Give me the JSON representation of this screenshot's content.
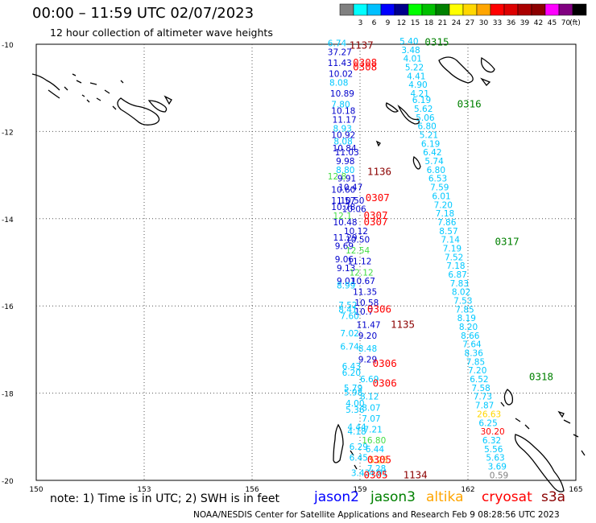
{
  "title": "00:00 – 11:59 UTC 02/07/2023",
  "subtitle": "12 hour collection of altimeter wave heights",
  "note": "note: 1) Time is in UTC; 2) SWH is in feet",
  "credit": "NOAA/NESDIS Center for Satellite Applications and Research   Feb  9 08:28:56 UTC 2023",
  "legend": {
    "unit": "(ft)",
    "bins": [
      {
        "label": "",
        "color": "#808080"
      },
      {
        "label": "3",
        "color": "#00ffff"
      },
      {
        "label": "6",
        "color": "#00c0ff"
      },
      {
        "label": "9",
        "color": "#0000ff"
      },
      {
        "label": "12",
        "color": "#00008b"
      },
      {
        "label": "15",
        "color": "#00ff00"
      },
      {
        "label": "18",
        "color": "#00c000"
      },
      {
        "label": "21",
        "color": "#008000"
      },
      {
        "label": "24",
        "color": "#ffff00"
      },
      {
        "label": "27",
        "color": "#ffd700"
      },
      {
        "label": "30",
        "color": "#ffa500"
      },
      {
        "label": "33",
        "color": "#ff0000"
      },
      {
        "label": "36",
        "color": "#dd0000"
      },
      {
        "label": "39",
        "color": "#aa0000"
      },
      {
        "label": "42",
        "color": "#8b0000"
      },
      {
        "label": "45",
        "color": "#ff00ff"
      },
      {
        "label": "70",
        "color": "#800080"
      },
      {
        "label": "",
        "color": "#000000"
      }
    ]
  },
  "missions": [
    {
      "name": "jason2",
      "color": "#0000ff"
    },
    {
      "name": "jason3",
      "color": "#008000"
    },
    {
      "name": "altika",
      "color": "#ffa500"
    },
    {
      "name": "cryosat",
      "color": "#ff0000"
    },
    {
      "name": "s3a",
      "color": "#8b0000"
    }
  ],
  "axes": {
    "lon_ticks": [
      "150",
      "153",
      "156",
      "159",
      "162",
      "165"
    ],
    "lat_ticks": [
      "-10",
      "-12",
      "-14",
      "-16",
      "-18",
      "-20"
    ],
    "lon_range": [
      150,
      165
    ],
    "lat_range": [
      -20,
      -10
    ]
  },
  "colors": {
    "track_a": "#00c8ff",
    "track_b": "#0000cc",
    "jason3_pt": "#44dd44",
    "cryosat_time": "#ff0000",
    "s3a_time": "#8b0000",
    "jason3_time": "#008000",
    "coast": "#000000"
  },
  "time_labels": [
    {
      "text": "0315",
      "lon": 160.8,
      "lat": -10.03,
      "mission": "jason3_time"
    },
    {
      "text": "0316",
      "lon": 161.7,
      "lat": -11.45,
      "mission": "jason3_time"
    },
    {
      "text": "0317",
      "lon": 162.75,
      "lat": -14.6,
      "mission": "jason3_time"
    },
    {
      "text": "0318",
      "lon": 163.7,
      "lat": -17.7,
      "mission": "jason3_time"
    },
    {
      "text": "1137",
      "lon": 158.7,
      "lat": -10.1,
      "mission": "s3a_time"
    },
    {
      "text": "0308",
      "lon": 158.8,
      "lat": -10.5,
      "mission": "cryosat_time"
    },
    {
      "text": "0308",
      "lon": 158.8,
      "lat": -10.6,
      "mission": "cryosat_time"
    },
    {
      "text": "1136",
      "lon": 159.2,
      "lat": -13.0,
      "mission": "s3a_time"
    },
    {
      "text": "0307",
      "lon": 159.15,
      "lat": -13.6,
      "mission": "cryosat_time"
    },
    {
      "text": "0307",
      "lon": 159.1,
      "lat": -14.0,
      "mission": "cryosat_time"
    },
    {
      "text": "0307",
      "lon": 159.1,
      "lat": -14.15,
      "mission": "cryosat_time"
    },
    {
      "text": "0306",
      "lon": 159.2,
      "lat": -16.15,
      "mission": "cryosat_time"
    },
    {
      "text": "1135",
      "lon": 159.85,
      "lat": -16.5,
      "mission": "s3a_time"
    },
    {
      "text": "0306",
      "lon": 159.35,
      "lat": -17.4,
      "mission": "cryosat_time"
    },
    {
      "text": "0306",
      "lon": 159.35,
      "lat": -17.85,
      "mission": "cryosat_time"
    },
    {
      "text": "0305",
      "lon": 159.2,
      "lat": -19.6,
      "mission": "cryosat_time"
    },
    {
      "text": "0305",
      "lon": 159.1,
      "lat": -19.95,
      "mission": "cryosat_time"
    },
    {
      "text": "1134",
      "lon": 160.2,
      "lat": -19.95,
      "mission": "s3a_time"
    }
  ],
  "track_a": [
    {
      "v": "5.40",
      "lon": 160.1,
      "lat": -10.0
    },
    {
      "v": "3.48",
      "lon": 160.15,
      "lat": -10.2
    },
    {
      "v": "4.01",
      "lon": 160.2,
      "lat": -10.4
    },
    {
      "v": "5.22",
      "lon": 160.25,
      "lat": -10.6
    },
    {
      "v": "4.41",
      "lon": 160.3,
      "lat": -10.8
    },
    {
      "v": "4.90",
      "lon": 160.35,
      "lat": -11.0
    },
    {
      "v": "4.21",
      "lon": 160.4,
      "lat": -11.2
    },
    {
      "v": "6.19",
      "lon": 160.45,
      "lat": -11.35
    },
    {
      "v": "5.62",
      "lon": 160.5,
      "lat": -11.55
    },
    {
      "v": "5.06",
      "lon": 160.55,
      "lat": -11.75
    },
    {
      "v": "6.80",
      "lon": 160.6,
      "lat": -11.95
    },
    {
      "v": "5.21",
      "lon": 160.65,
      "lat": -12.15
    },
    {
      "v": "6.19",
      "lon": 160.7,
      "lat": -12.35
    },
    {
      "v": "6.42",
      "lon": 160.75,
      "lat": -12.55
    },
    {
      "v": "5.74",
      "lon": 160.8,
      "lat": -12.75
    },
    {
      "v": "6.80",
      "lon": 160.85,
      "lat": -12.95
    },
    {
      "v": "6.53",
      "lon": 160.9,
      "lat": -13.15
    },
    {
      "v": "7.59",
      "lon": 160.95,
      "lat": -13.35
    },
    {
      "v": "6.01",
      "lon": 161.0,
      "lat": -13.55
    },
    {
      "v": "7.20",
      "lon": 161.05,
      "lat": -13.75
    },
    {
      "v": "7.18",
      "lon": 161.1,
      "lat": -13.95
    },
    {
      "v": "7.86",
      "lon": 161.15,
      "lat": -14.15
    },
    {
      "v": "8.57",
      "lon": 161.2,
      "lat": -14.35
    },
    {
      "v": "7.14",
      "lon": 161.25,
      "lat": -14.55
    },
    {
      "v": "7.19",
      "lon": 161.3,
      "lat": -14.75
    },
    {
      "v": "7.52",
      "lon": 161.35,
      "lat": -14.95
    },
    {
      "v": "7.18",
      "lon": 161.4,
      "lat": -15.15
    },
    {
      "v": "6.87",
      "lon": 161.45,
      "lat": -15.35
    },
    {
      "v": "7.83",
      "lon": 161.5,
      "lat": -15.55
    },
    {
      "v": "8.02",
      "lon": 161.55,
      "lat": -15.75
    },
    {
      "v": "7.53",
      "lon": 161.6,
      "lat": -15.95
    },
    {
      "v": "7.85",
      "lon": 161.65,
      "lat": -16.15
    },
    {
      "v": "8.19",
      "lon": 161.7,
      "lat": -16.35
    },
    {
      "v": "8.20",
      "lon": 161.75,
      "lat": -16.55
    },
    {
      "v": "8.66",
      "lon": 161.8,
      "lat": -16.75
    },
    {
      "v": "7.64",
      "lon": 161.85,
      "lat": -16.95
    },
    {
      "v": "8.36",
      "lon": 161.9,
      "lat": -17.15
    },
    {
      "v": "7.85",
      "lon": 161.95,
      "lat": -17.35
    },
    {
      "v": "7.20",
      "lon": 162.0,
      "lat": -17.55
    },
    {
      "v": "6.52",
      "lon": 162.05,
      "lat": -17.75
    },
    {
      "v": "7.58",
      "lon": 162.1,
      "lat": -17.95
    },
    {
      "v": "7.73",
      "lon": 162.15,
      "lat": -18.15
    },
    {
      "v": "7.87",
      "lon": 162.2,
      "lat": -18.35
    },
    {
      "v": "6.25",
      "lon": 162.3,
      "lat": -18.75
    },
    {
      "v": "6.32",
      "lon": 162.4,
      "lat": -19.15
    },
    {
      "v": "5.56",
      "lon": 162.45,
      "lat": -19.35
    },
    {
      "v": "5.63",
      "lon": 162.5,
      "lat": -19.55
    },
    {
      "v": "3.69",
      "lon": 162.55,
      "lat": -19.75
    }
  ],
  "track_a_special": [
    {
      "v": "26.63",
      "lon": 162.25,
      "lat": -18.55,
      "color": "#ffd700"
    },
    {
      "v": "30.20",
      "lon": 162.35,
      "lat": -18.95,
      "color": "#ff0000"
    },
    {
      "v": "0.59",
      "lon": 162.6,
      "lat": -19.95,
      "color": "#808080"
    }
  ],
  "track_b": [
    {
      "v": "6.74",
      "lon": 158.1,
      "lat": -10.05,
      "c": "a"
    },
    {
      "v": "37.27",
      "lon": 158.1,
      "lat": -10.25,
      "c": "b"
    },
    {
      "v": "11.43",
      "lon": 158.1,
      "lat": -10.5,
      "c": "b"
    },
    {
      "v": "10.02",
      "lon": 158.13,
      "lat": -10.75,
      "c": "b"
    },
    {
      "v": "8.08",
      "lon": 158.15,
      "lat": -10.95,
      "c": "a"
    },
    {
      "v": "10.89",
      "lon": 158.17,
      "lat": -11.2,
      "c": "b"
    },
    {
      "v": "7.80",
      "lon": 158.2,
      "lat": -11.45,
      "c": "a"
    },
    {
      "v": "10.18",
      "lon": 158.2,
      "lat": -11.6,
      "c": "b"
    },
    {
      "v": "11.17",
      "lon": 158.23,
      "lat": -11.8,
      "c": "b"
    },
    {
      "v": "8.93",
      "lon": 158.25,
      "lat": -12.0,
      "c": "a"
    },
    {
      "v": "10.92",
      "lon": 158.2,
      "lat": -12.15,
      "c": "b"
    },
    {
      "v": "8.08",
      "lon": 158.27,
      "lat": -12.3,
      "c": "a"
    },
    {
      "v": "10.84",
      "lon": 158.23,
      "lat": -12.45,
      "c": "b"
    },
    {
      "v": "11.03",
      "lon": 158.3,
      "lat": -12.55,
      "c": "b"
    },
    {
      "v": "9.98",
      "lon": 158.33,
      "lat": -12.75,
      "c": "b"
    },
    {
      "v": "8.80",
      "lon": 158.33,
      "lat": -12.95,
      "c": "a"
    },
    {
      "v": "12.8",
      "lon": 158.1,
      "lat": -13.1,
      "c": "g"
    },
    {
      "v": "9.91",
      "lon": 158.37,
      "lat": -13.15,
      "c": "b"
    },
    {
      "v": "10.47",
      "lon": 158.4,
      "lat": -13.35,
      "c": "b"
    },
    {
      "v": "10.60",
      "lon": 158.2,
      "lat": -13.4,
      "c": "b"
    },
    {
      "v": "11.57",
      "lon": 158.2,
      "lat": -13.65,
      "c": "b"
    },
    {
      "v": "10.50",
      "lon": 158.45,
      "lat": -13.65,
      "c": "b"
    },
    {
      "v": "10.78",
      "lon": 158.2,
      "lat": -13.8,
      "c": "b"
    },
    {
      "v": "10.06",
      "lon": 158.5,
      "lat": -13.85,
      "c": "b"
    },
    {
      "v": "12.1",
      "lon": 158.25,
      "lat": -14.0,
      "c": "g"
    },
    {
      "v": "10.48",
      "lon": 158.25,
      "lat": -14.15,
      "c": "b"
    },
    {
      "v": "10.12",
      "lon": 158.55,
      "lat": -14.35,
      "c": "b"
    },
    {
      "v": "11.29",
      "lon": 158.25,
      "lat": -14.5,
      "c": "b"
    },
    {
      "v": "10.50",
      "lon": 158.6,
      "lat": -14.55,
      "c": "b"
    },
    {
      "v": "9.69",
      "lon": 158.3,
      "lat": -14.7,
      "c": "b"
    },
    {
      "v": "12.54",
      "lon": 158.6,
      "lat": -14.8,
      "c": "g"
    },
    {
      "v": "9.06",
      "lon": 158.3,
      "lat": -15.0,
      "c": "b"
    },
    {
      "v": "11.12",
      "lon": 158.65,
      "lat": -15.05,
      "c": "b"
    },
    {
      "v": "9.13",
      "lon": 158.35,
      "lat": -15.2,
      "c": "b"
    },
    {
      "v": "12.12",
      "lon": 158.7,
      "lat": -15.3,
      "c": "g"
    },
    {
      "v": "9.01",
      "lon": 158.35,
      "lat": -15.5,
      "c": "b"
    },
    {
      "v": "10.67",
      "lon": 158.75,
      "lat": -15.5,
      "c": "b"
    },
    {
      "v": "8.99",
      "lon": 158.35,
      "lat": -15.6,
      "c": "a"
    },
    {
      "v": "11.35",
      "lon": 158.8,
      "lat": -15.75,
      "c": "b"
    },
    {
      "v": "10.58",
      "lon": 158.85,
      "lat": -16.0,
      "c": "b"
    },
    {
      "v": "7.52",
      "lon": 158.4,
      "lat": -16.05,
      "c": "a"
    },
    {
      "v": "8.41",
      "lon": 158.4,
      "lat": -16.15,
      "c": "a"
    },
    {
      "v": "10.7",
      "lon": 158.85,
      "lat": -16.2,
      "c": "b"
    },
    {
      "v": "7.60",
      "lon": 158.45,
      "lat": -16.3,
      "c": "a"
    },
    {
      "v": "11.47",
      "lon": 158.9,
      "lat": -16.5,
      "c": "b"
    },
    {
      "v": "7.02",
      "lon": 158.45,
      "lat": -16.7,
      "c": "a"
    },
    {
      "v": "9.20",
      "lon": 158.95,
      "lat": -16.75,
      "c": "b"
    },
    {
      "v": "6.74",
      "lon": 158.45,
      "lat": -17.0,
      "c": "a"
    },
    {
      "v": "8.48",
      "lon": 158.95,
      "lat": -17.05,
      "c": "a"
    },
    {
      "v": "9.29",
      "lon": 158.95,
      "lat": -17.3,
      "c": "b"
    },
    {
      "v": "6.43",
      "lon": 158.5,
      "lat": -17.45,
      "c": "a"
    },
    {
      "v": "6.20",
      "lon": 158.5,
      "lat": -17.6,
      "c": "a"
    },
    {
      "v": "6.69",
      "lon": 159.0,
      "lat": -17.75,
      "c": "a"
    },
    {
      "v": "5.79",
      "lon": 158.55,
      "lat": -17.95,
      "c": "a"
    },
    {
      "v": "5.98",
      "lon": 158.55,
      "lat": -18.05,
      "c": "a"
    },
    {
      "v": "8.12",
      "lon": 159.0,
      "lat": -18.15,
      "c": "a"
    },
    {
      "v": "4.00",
      "lon": 158.6,
      "lat": -18.3,
      "c": "a"
    },
    {
      "v": "8.07",
      "lon": 159.05,
      "lat": -18.4,
      "c": "a"
    },
    {
      "v": "5.36",
      "lon": 158.6,
      "lat": -18.45,
      "c": "a"
    },
    {
      "v": "7.07",
      "lon": 159.05,
      "lat": -18.65,
      "c": "a"
    },
    {
      "v": "4.44",
      "lon": 158.65,
      "lat": -18.85,
      "c": "a"
    },
    {
      "v": "7.21",
      "lon": 159.1,
      "lat": -18.9,
      "c": "a"
    },
    {
      "v": "4.18",
      "lon": 158.65,
      "lat": -18.95,
      "c": "a"
    },
    {
      "v": "16.80",
      "lon": 159.05,
      "lat": -19.15,
      "c": "g"
    },
    {
      "v": "6.29",
      "lon": 158.7,
      "lat": -19.3,
      "c": "a"
    },
    {
      "v": "6.44",
      "lon": 159.15,
      "lat": -19.35,
      "c": "a"
    },
    {
      "v": "6.45",
      "lon": 158.7,
      "lat": -19.55,
      "c": "a"
    },
    {
      "v": "5.25",
      "lon": 159.25,
      "lat": -19.6,
      "c": "o"
    },
    {
      "v": "7.28",
      "lon": 159.2,
      "lat": -19.8,
      "c": "a"
    },
    {
      "v": "3.43",
      "lon": 158.75,
      "lat": -19.9,
      "c": "a"
    },
    {
      "v": "4.91",
      "lon": 159.25,
      "lat": -19.9,
      "c": "a"
    }
  ]
}
